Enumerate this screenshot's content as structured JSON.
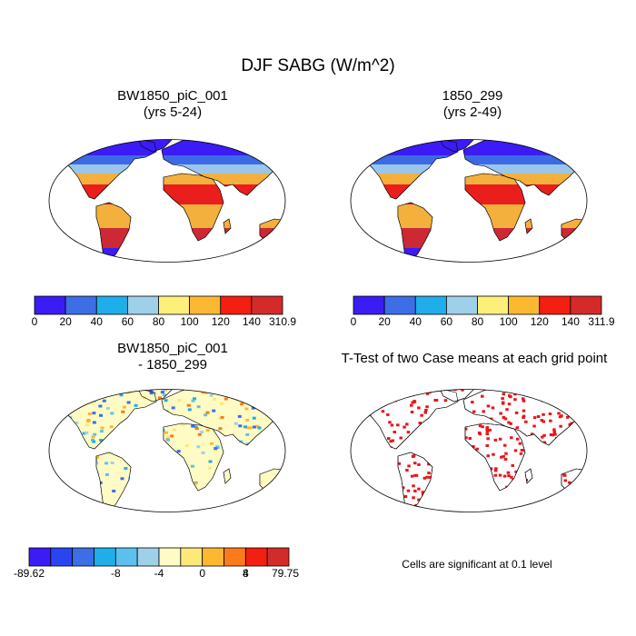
{
  "title": "DJF SABG (W/m^2)",
  "panels": {
    "p1": {
      "title1": "BW1850_piC_001",
      "title2": "(yrs 5-24)"
    },
    "p2": {
      "title1": "1850_299",
      "title2": "(yrs 2-49)"
    },
    "p3": {
      "title1": "BW1850_piC_001",
      "title2": "- 1850_299"
    },
    "p4": {
      "title1": "T-Test of two Case means at each grid point"
    }
  },
  "colorbar1": {
    "colors": [
      "#3b1cf5",
      "#3d6ee6",
      "#1faeea",
      "#9fd0ea",
      "#fdf07a",
      "#fdb832",
      "#f31f10",
      "#d42a2a"
    ],
    "labels": [
      "0",
      "20",
      "40",
      "60",
      "80",
      "100",
      "120",
      "140",
      "310.9"
    ]
  },
  "colorbar2": {
    "colors": [
      "#3b1cf5",
      "#3d6ee6",
      "#1faeea",
      "#9fd0ea",
      "#fdf07a",
      "#fdb832",
      "#f31f10",
      "#d42a2a"
    ],
    "labels": [
      "0",
      "20",
      "40",
      "60",
      "80",
      "100",
      "120",
      "140",
      "311.9"
    ]
  },
  "colorbar3": {
    "colors": [
      "#3b1cf5",
      "#2a45f0",
      "#3d6ee6",
      "#1faeea",
      "#5cc0ee",
      "#9fd0ea",
      "#fffbc5",
      "#fde97a",
      "#fdb832",
      "#fb7a1a",
      "#f31f10",
      "#d42a2a"
    ],
    "labels": [
      "-89.62",
      "-8",
      "-4",
      "0",
      "4",
      "8",
      "79.75"
    ]
  },
  "note": "Cells are significant at 0.1 level",
  "colors": {
    "ocean": "#ffffff",
    "outline": "#000000",
    "sig": "#e8161a",
    "antarctica_abs": "#8dc8ee",
    "antarctica_diff": "#c9e6f5"
  }
}
